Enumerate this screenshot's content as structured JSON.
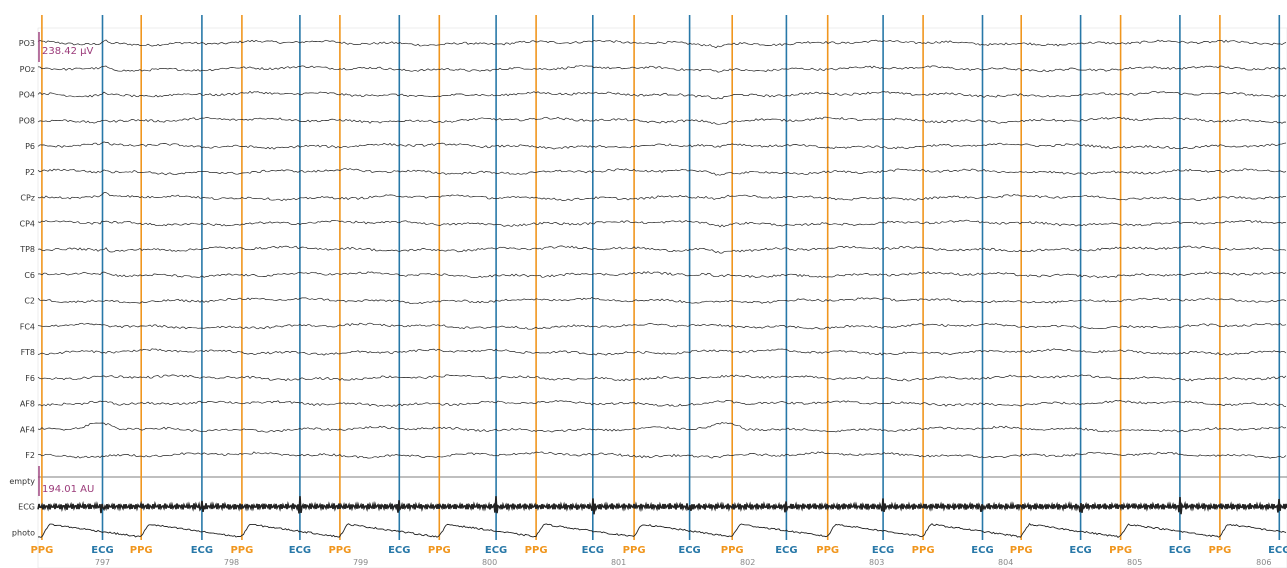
{
  "chart_data": {
    "type": "line",
    "channels": [
      "PO3",
      "POz",
      "PO4",
      "PO8",
      "P6",
      "P2",
      "CPz",
      "CP4",
      "TP8",
      "C6",
      "C2",
      "FC4",
      "FT8",
      "F6",
      "AF8",
      "AF4",
      "F2",
      "empty",
      "ECG",
      "photo"
    ],
    "xlim": [
      796.5,
      806.18
    ],
    "x_ticks": [
      797,
      798,
      799,
      800,
      801,
      802,
      803,
      804,
      805,
      806
    ],
    "x_tick_labels": [
      "797",
      "798",
      "799",
      "800",
      "801",
      "802",
      "803",
      "804",
      "805",
      "806"
    ],
    "scale_labels": [
      "238.42 µV",
      "194.01 AU"
    ],
    "events": [
      {
        "type": "PPG",
        "time": 796.53
      },
      {
        "type": "ECG",
        "time": 797.0
      },
      {
        "type": "PPG",
        "time": 797.3
      },
      {
        "type": "ECG",
        "time": 797.77
      },
      {
        "type": "PPG",
        "time": 798.08
      },
      {
        "type": "ECG",
        "time": 798.53
      },
      {
        "type": "PPG",
        "time": 798.84
      },
      {
        "type": "ECG",
        "time": 799.3
      },
      {
        "type": "PPG",
        "time": 799.61
      },
      {
        "type": "ECG",
        "time": 800.05
      },
      {
        "type": "PPG",
        "time": 800.36
      },
      {
        "type": "ECG",
        "time": 800.8
      },
      {
        "type": "PPG",
        "time": 801.12
      },
      {
        "type": "ECG",
        "time": 801.55
      },
      {
        "type": "PPG",
        "time": 801.88
      },
      {
        "type": "ECG",
        "time": 802.3
      },
      {
        "type": "PPG",
        "time": 802.62
      },
      {
        "type": "ECG",
        "time": 803.05
      },
      {
        "type": "PPG",
        "time": 803.36
      },
      {
        "type": "ECG",
        "time": 803.82
      },
      {
        "type": "PPG",
        "time": 804.12
      },
      {
        "type": "ECG",
        "time": 804.58
      },
      {
        "type": "PPG",
        "time": 804.89
      },
      {
        "type": "ECG",
        "time": 805.35
      },
      {
        "type": "PPG",
        "time": 805.66
      },
      {
        "type": "ECG",
        "time": 806.12
      }
    ],
    "event_colors": {
      "ECG": "#2878a8",
      "PPG": "#f0961e"
    },
    "signal_color": "#222222",
    "scale_color": "#9b3b7a"
  }
}
